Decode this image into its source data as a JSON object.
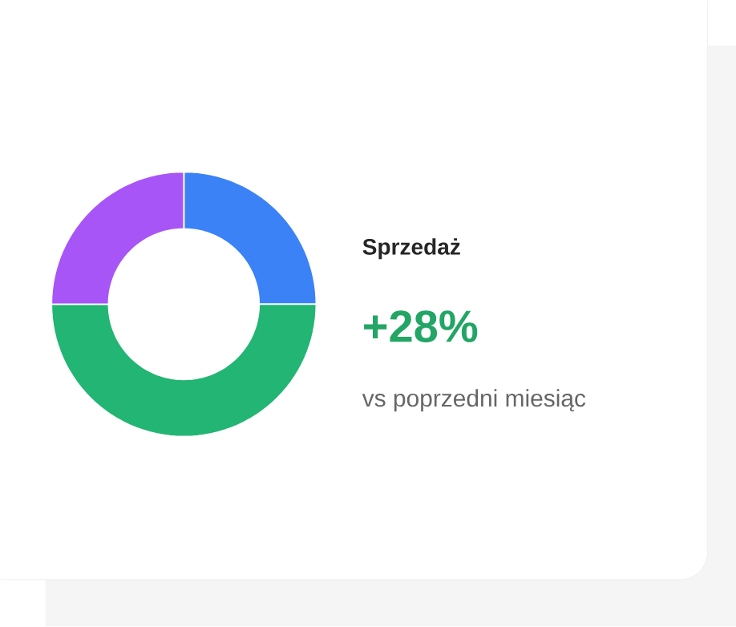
{
  "chart_data": {
    "type": "donut",
    "title": "Sprzedaż",
    "annotations": [
      "+28%",
      "vs poprzedni miesiąc"
    ],
    "categories": [
      null,
      null,
      null
    ],
    "values": [
      25,
      50,
      25
    ],
    "colors": [
      "#3b82f6",
      "#22b573",
      "#a855f7"
    ]
  }
}
